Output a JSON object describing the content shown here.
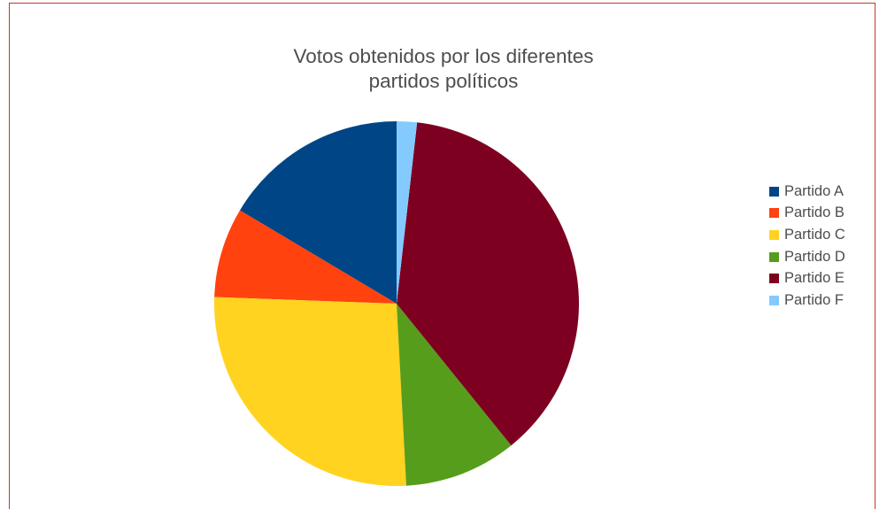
{
  "chart_data": {
    "type": "pie",
    "title": "Votos obtenidos por los diferentes partidos políticos",
    "title_lines": [
      "Votos obtenidos por los diferentes",
      "partidos políticos"
    ],
    "categories": [
      "Partido A",
      "Partido B",
      "Partido C",
      "Partido D",
      "Partido E",
      "Partido F"
    ],
    "values": [
      16.5,
      8.0,
      26.5,
      10.0,
      37.5,
      1.8
    ],
    "colors": [
      "#004586",
      "#ff420e",
      "#ffd320",
      "#579d1c",
      "#7e0021",
      "#83caff"
    ],
    "legend_position": "right"
  }
}
